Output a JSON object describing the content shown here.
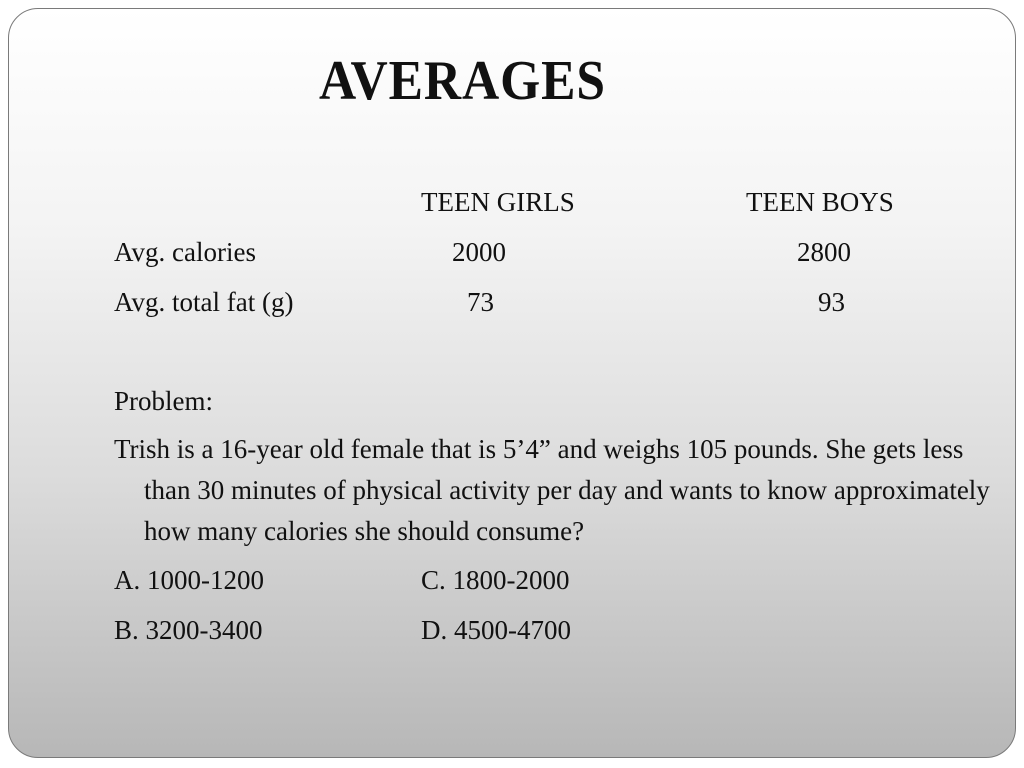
{
  "slide": {
    "title": "AVERAGES",
    "table": {
      "headers": [
        "TEEN GIRLS",
        "TEEN BOYS"
      ],
      "rows": [
        {
          "label": "Avg. calories",
          "girls": "2000",
          "boys": "2800"
        },
        {
          "label": "Avg. total fat (g)",
          "girls": "73",
          "boys": "93"
        }
      ]
    },
    "problem": {
      "heading": "Problem:",
      "text": "Trish is a 16-year old female that is 5’4” and weighs 105 pounds.  She gets less than 30 minutes of physical activity per day and wants to know approximately how many calories she should consume?",
      "options": {
        "a": "A. 1000-1200",
        "b": "B.  3200-3400",
        "c": "C. 1800-2000",
        "d": "D. 4500-4700"
      }
    }
  }
}
